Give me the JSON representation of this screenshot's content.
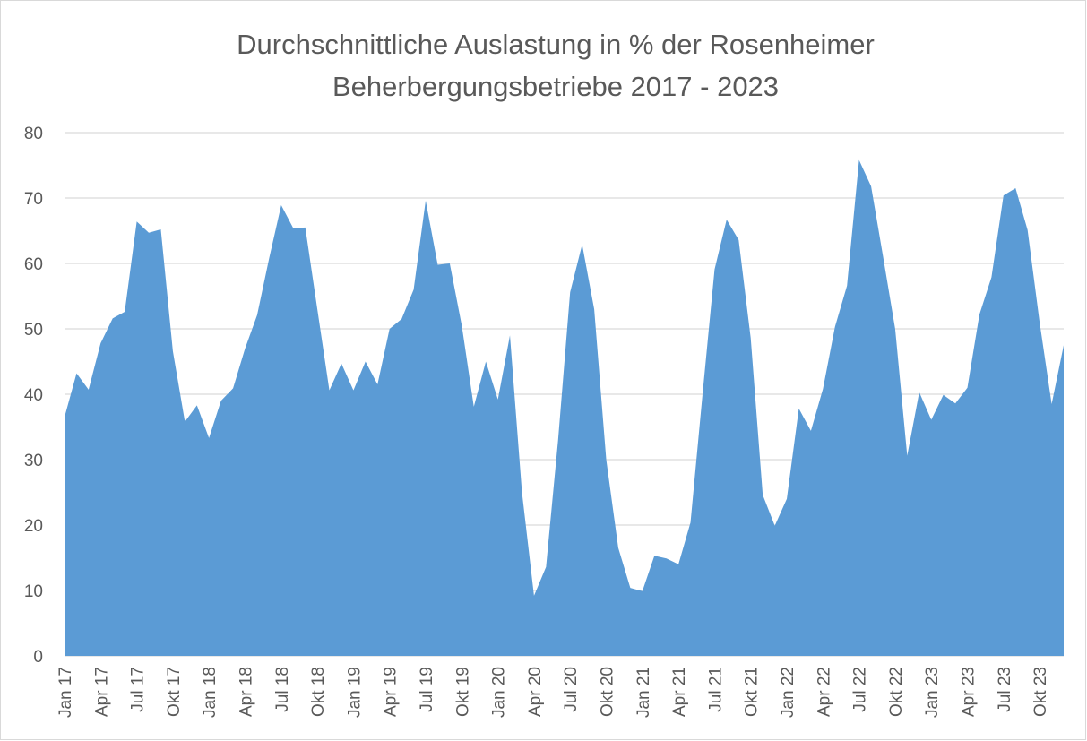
{
  "chart_data": {
    "type": "area",
    "title": [
      "Durchschnittliche Auslastung in % der Rosenheimer",
      "Beherbergungsbetriebe 2017 - 2023"
    ],
    "categories": [
      "Jan 17",
      null,
      null,
      "Apr 17",
      null,
      null,
      "Jul 17",
      null,
      null,
      "Okt 17",
      null,
      null,
      "Jan 18",
      null,
      null,
      "Apr 18",
      null,
      null,
      "Jul 18",
      null,
      null,
      "Okt 18",
      null,
      null,
      "Jan 19",
      null,
      null,
      "Apr 19",
      null,
      null,
      "Jul 19",
      null,
      null,
      "Okt 19",
      null,
      null,
      "Jan 20",
      null,
      null,
      "Apr 20",
      null,
      null,
      "Jul 20",
      null,
      null,
      "Okt 20",
      null,
      null,
      "Jan 21",
      null,
      null,
      "Apr 21",
      null,
      null,
      "Jul 21",
      null,
      null,
      "Okt 21",
      null,
      null,
      "Jan 22",
      null,
      null,
      "Apr 22",
      null,
      null,
      "Jul 22",
      null,
      null,
      "Okt 22",
      null,
      null,
      "Jan 23",
      null,
      null,
      "Apr 23",
      null,
      null,
      "Jul 23",
      null,
      null,
      "Okt 23",
      null,
      null
    ],
    "values": [
      36.5,
      43.2,
      40.7,
      47.8,
      51.6,
      52.6,
      66.4,
      64.7,
      65.2,
      46.6,
      35.8,
      38.3,
      33.3,
      39.0,
      40.9,
      47.0,
      52.1,
      60.8,
      68.9,
      65.4,
      65.5,
      53.0,
      40.6,
      44.7,
      40.6,
      45.0,
      41.5,
      50.0,
      51.5,
      56.0,
      69.6,
      59.8,
      60.0,
      50.5,
      38.1,
      45.0,
      39.2,
      49.0,
      25.0,
      9.2,
      13.6,
      33.0,
      55.6,
      62.9,
      53.0,
      30.0,
      16.5,
      10.4,
      9.9,
      15.3,
      14.9,
      14.0,
      20.4,
      40.0,
      59.1,
      66.7,
      63.6,
      48.6,
      24.6,
      19.9,
      24.0,
      37.8,
      34.4,
      40.8,
      50.3,
      56.6,
      75.8,
      71.8,
      61.0,
      50.0,
      30.6,
      40.3,
      36.1,
      39.9,
      38.6,
      41.0,
      52.2,
      57.9,
      70.4,
      71.5,
      65.1,
      51.0,
      38.5,
      47.5
    ],
    "color": "#5b9bd5",
    "ylim": [
      0,
      80
    ],
    "yticks": [
      0,
      10,
      20,
      30,
      40,
      50,
      60,
      70,
      80
    ],
    "grid": true
  }
}
